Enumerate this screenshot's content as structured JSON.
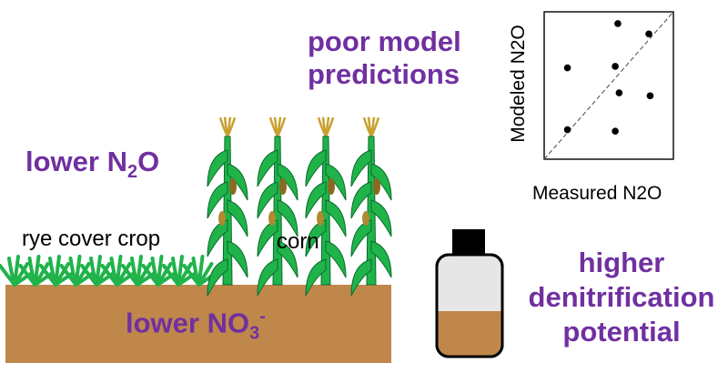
{
  "colors": {
    "accent_purple": "#7030a0",
    "soil_brown": "#c0874b",
    "plant_green": "#20b34a",
    "plant_dark": "#0a6b2b",
    "tassel_gold": "#c8a030"
  },
  "labels": {
    "poor_model_line1": "poor model",
    "poor_model_line2": "predictions",
    "lower_n2o_main": "lower N",
    "lower_n2o_sub": "2",
    "lower_n2o_end": "O",
    "rye": "rye cover crop",
    "corn": "corn",
    "lower_no3_main": "lower NO",
    "lower_no3_sub": "3",
    "lower_no3_sup": "-",
    "higher_line1": "higher",
    "higher_line2": "denitrification",
    "higher_line3": "potential"
  },
  "inset_plot": {
    "ylabel": "Modeled N2O",
    "xlabel": "Measured N2O",
    "reference_line": "1:1 dashed",
    "points": [
      {
        "x": 0.18,
        "y": 0.62
      },
      {
        "x": 0.57,
        "y": 0.92
      },
      {
        "x": 0.81,
        "y": 0.85
      },
      {
        "x": 0.55,
        "y": 0.63
      },
      {
        "x": 0.58,
        "y": 0.45
      },
      {
        "x": 0.82,
        "y": 0.43
      },
      {
        "x": 0.18,
        "y": 0.2
      },
      {
        "x": 0.55,
        "y": 0.19
      }
    ]
  },
  "icons": {
    "sample_bottle": "soil-sample-bottle-icon",
    "corn_plant": "corn-plant-icon",
    "rye_tuft": "rye-tuft-icon"
  }
}
